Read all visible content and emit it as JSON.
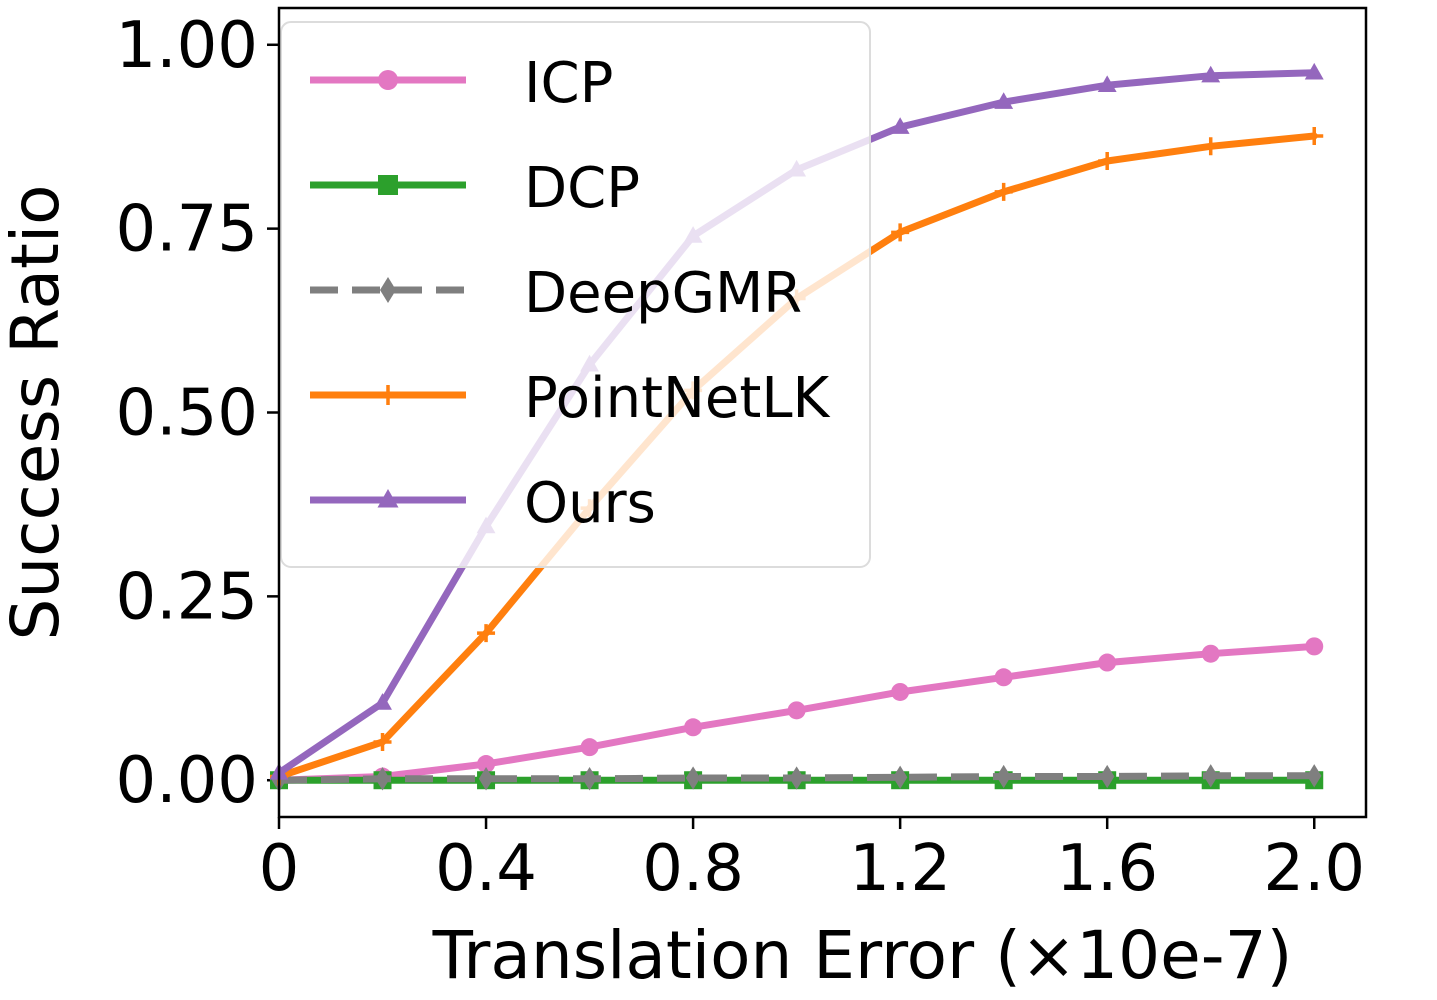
{
  "chart_data": {
    "type": "line",
    "title": "",
    "xlabel": "Translation Error (×10e-7)",
    "ylabel": "Success Ratio",
    "xlim": [
      0,
      2.1
    ],
    "ylim": [
      -0.05,
      1.05
    ],
    "x_ticks": [
      {
        "value": 0,
        "label": "0"
      },
      {
        "value": 0.4,
        "label": "0.4"
      },
      {
        "value": 0.8,
        "label": "0.8"
      },
      {
        "value": 1.2,
        "label": "1.2"
      },
      {
        "value": 1.6,
        "label": "1.6"
      },
      {
        "value": 2.0,
        "label": "2.0"
      }
    ],
    "y_ticks": [
      {
        "value": 0.0,
        "label": "0.00"
      },
      {
        "value": 0.25,
        "label": "0.25"
      },
      {
        "value": 0.5,
        "label": "0.50"
      },
      {
        "value": 0.75,
        "label": "0.75"
      },
      {
        "value": 1.0,
        "label": "1.00"
      }
    ],
    "grid": false,
    "legend_position": "top-left",
    "x": [
      0,
      0.2,
      0.4,
      0.6,
      0.8,
      1.0,
      1.2,
      1.4,
      1.6,
      1.8,
      2.0
    ],
    "series": [
      {
        "name": "ICP",
        "color": "#e377c2",
        "marker": "circle",
        "dash": "solid",
        "values": [
          0.0,
          0.005,
          0.022,
          0.045,
          0.072,
          0.095,
          0.12,
          0.14,
          0.16,
          0.172,
          0.182
        ]
      },
      {
        "name": "DCP",
        "color": "#2ca02c",
        "marker": "square",
        "dash": "solid",
        "values": [
          0.0,
          0.0,
          0.0,
          0.0,
          0.0,
          0.0,
          0.0,
          0.0,
          0.0,
          0.0,
          0.0
        ]
      },
      {
        "name": "DeepGMR",
        "color": "#7f7f7f",
        "marker": "diamond",
        "dash": "dashed",
        "values": [
          0.0,
          0.002,
          0.002,
          0.002,
          0.003,
          0.003,
          0.004,
          0.005,
          0.005,
          0.006,
          0.006
        ]
      },
      {
        "name": "PointNetLK",
        "color": "#ff7f0e",
        "marker": "plus",
        "dash": "solid",
        "values": [
          0.005,
          0.052,
          0.2,
          0.37,
          0.53,
          0.655,
          0.745,
          0.8,
          0.842,
          0.862,
          0.876
        ]
      },
      {
        "name": "Ours",
        "color": "#9467bd",
        "marker": "triangle",
        "dash": "solid",
        "values": [
          0.01,
          0.105,
          0.345,
          0.565,
          0.74,
          0.83,
          0.888,
          0.922,
          0.945,
          0.958,
          0.962
        ]
      }
    ]
  }
}
